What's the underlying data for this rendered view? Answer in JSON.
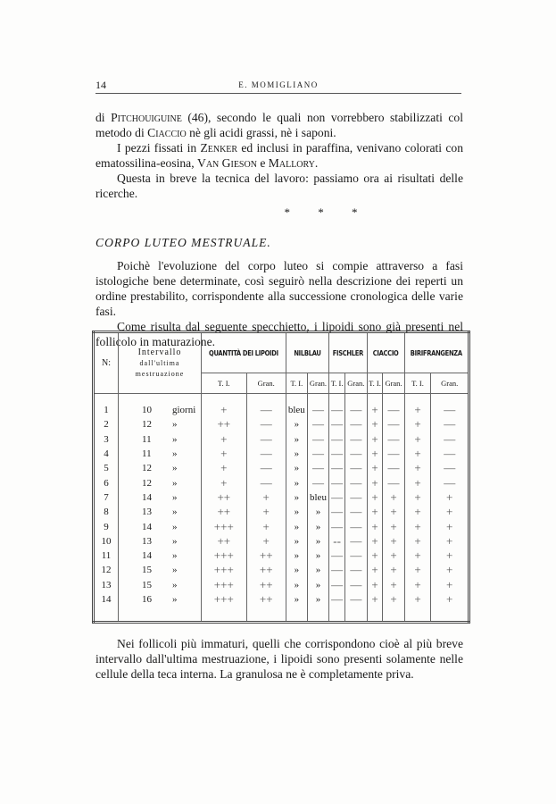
{
  "header": {
    "page_number": "14",
    "author": "E. MOMIGLIANO"
  },
  "paragraphs": [
    {
      "segments": [
        [
          "di ",
          ""
        ],
        [
          "Pitchouiguine",
          "sc"
        ],
        [
          " (46), secondo le quali non vorrebbero stabilizzati col metodo di ",
          ""
        ],
        [
          "Ciaccio",
          "sc"
        ],
        [
          " nè gli acidi grassi, nè i saponi.",
          ""
        ]
      ]
    },
    {
      "segments": [
        [
          "I pezzi fissati in ",
          ""
        ],
        [
          "Zenker",
          "sc"
        ],
        [
          " ed inclusi in paraffina, venivano colorati con ematossilina-eosina, ",
          ""
        ],
        [
          "Van Gieson",
          "sc"
        ],
        [
          " e ",
          ""
        ],
        [
          "Mallory",
          "sc"
        ],
        [
          ".",
          ""
        ]
      ]
    },
    {
      "segments": [
        [
          "Questa in breve la tecnica del lavoro: passiamo ora ai risultati delle ricerche.",
          ""
        ]
      ]
    }
  ],
  "separator": "* * *",
  "section_title": "CORPO LUTEO MESTRUALE.",
  "paragraphs2": [
    "Poichè l'evoluzione del corpo luteo si compie attraverso a fasi istologiche bene determinate, così seguirò nella descrizione dei reperti un ordine prestabilito, corrispondente alla successione cronologica delle varie fasi.",
    "Come risulta dal seguente specchietto, i lipoidi sono già presenti nel follicolo in maturazione."
  ],
  "table": {
    "col_no": "N:",
    "col_interval": [
      "Intervallo",
      "dall'ultima",
      "mestruazione"
    ],
    "groups": [
      "QUANTITÀ DEI LIPOIDI",
      "NILBLAU",
      "FISCHLER",
      "CIACCIO",
      "BIRIFRANGENZA"
    ],
    "subheaders": [
      "T. I.",
      "Gran.",
      "T. I.",
      "Gran.",
      "T. I.",
      "Gran.",
      "T. I.",
      "Gran.",
      "T. I.",
      "Gran."
    ],
    "rows": [
      [
        "1",
        "10",
        "giorni",
        "+",
        "—",
        "bleu",
        "—",
        "—",
        "—",
        "+",
        "—",
        "+",
        "—"
      ],
      [
        "2",
        "12",
        "»",
        "++",
        "—",
        "»",
        "—",
        "—",
        "—",
        "+",
        "—",
        "+",
        "—"
      ],
      [
        "3",
        "11",
        "»",
        "+",
        "—",
        "»",
        "—",
        "—",
        "—",
        "+",
        "—",
        "+",
        "—"
      ],
      [
        "4",
        "11",
        "»",
        "+",
        "—",
        "»",
        "—",
        "—",
        "—",
        "+",
        "—",
        "+",
        "—"
      ],
      [
        "5",
        "12",
        "»",
        "+",
        "—",
        "»",
        "—",
        "—",
        "—",
        "+",
        "—",
        "+",
        "—"
      ],
      [
        "6",
        "12",
        "»",
        "+",
        "—",
        "»",
        "—",
        "—",
        "—",
        "+",
        "—",
        "+",
        "—"
      ],
      [
        "7",
        "14",
        "»",
        "++",
        "+",
        "»",
        "bleu",
        "—",
        "—",
        "+",
        "+",
        "+",
        "+"
      ],
      [
        "8",
        "13",
        "»",
        "++",
        "+",
        "»",
        "»",
        "—",
        "—",
        "+",
        "+",
        "+",
        "+"
      ],
      [
        "9",
        "14",
        "»",
        "+++",
        "+",
        "»",
        "»",
        "—",
        "—",
        "+",
        "+",
        "+",
        "+"
      ],
      [
        "10",
        "13",
        "»",
        "++",
        "+",
        "»",
        "»",
        "--",
        "—",
        "+",
        "+",
        "+",
        "+"
      ],
      [
        "11",
        "14",
        "»",
        "+++",
        "++",
        "»",
        "»",
        "—",
        "—",
        "+",
        "+",
        "+",
        "+"
      ],
      [
        "12",
        "15",
        "»",
        "+++",
        "++",
        "»",
        "»",
        "—",
        "—",
        "+",
        "+",
        "+",
        "+"
      ],
      [
        "13",
        "15",
        "»",
        "+++",
        "++",
        "»",
        "»",
        "—",
        "—",
        "+",
        "+",
        "+",
        "+"
      ],
      [
        "14",
        "16",
        "»",
        "+++",
        "++",
        "»",
        "»",
        "—",
        "—",
        "+",
        "+",
        "+",
        "+"
      ]
    ]
  },
  "closing": "Nei follicoli più immaturi, quelli che corrispondono cioè al più breve intervallo dall'ultima mestruazione, i lipoidi sono presenti solamente nelle cellule della teca interna. La granulosa ne è completamente priva."
}
